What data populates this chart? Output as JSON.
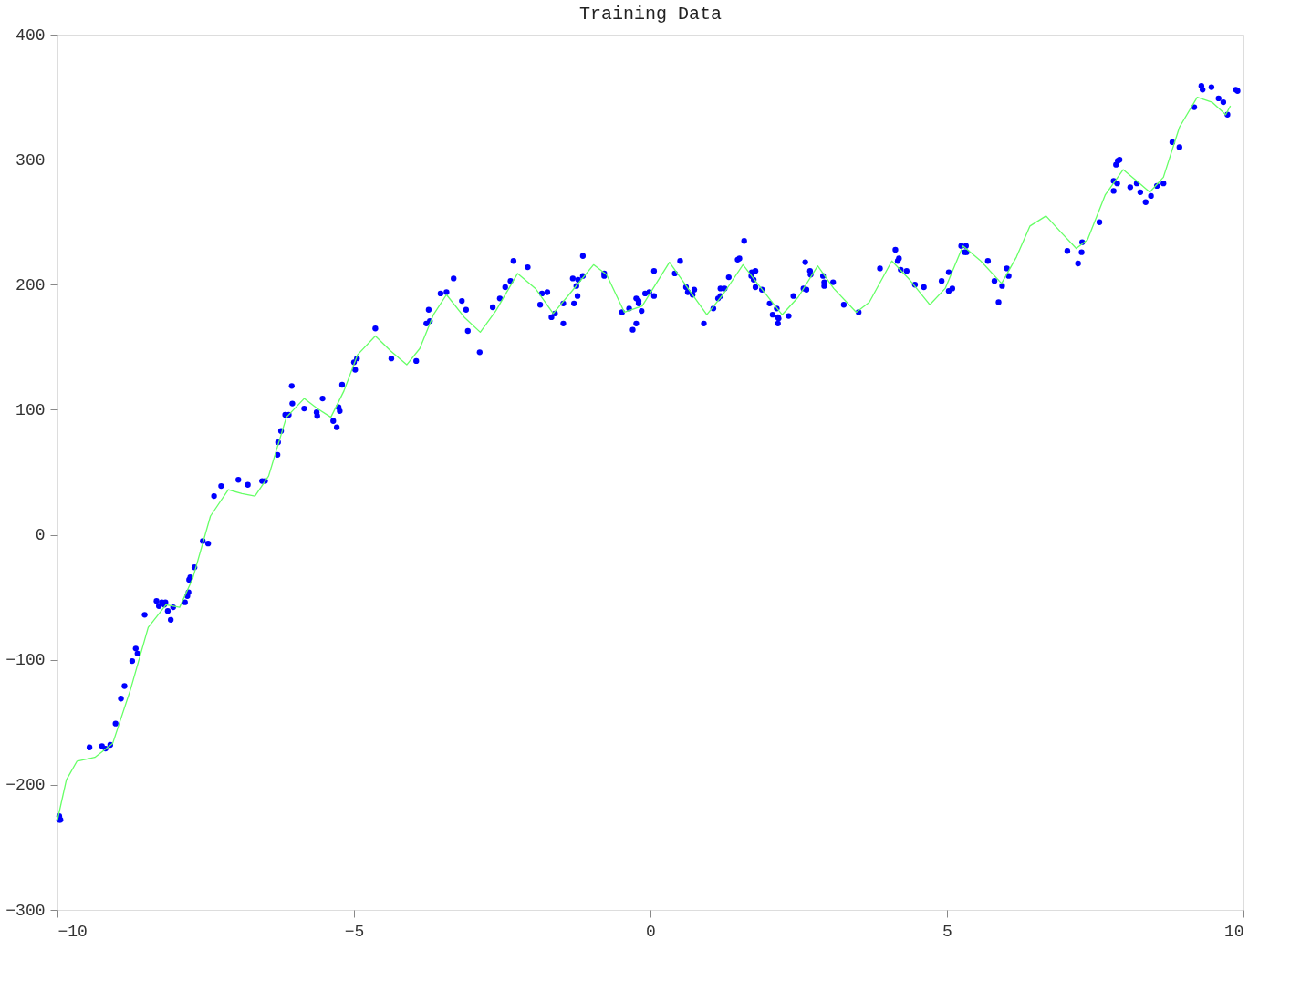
{
  "chart_data": {
    "type": "scatter",
    "title": "Training Data",
    "xlim": [
      -10,
      10
    ],
    "xticks": [
      -10,
      -5,
      0,
      5,
      10
    ],
    "ylim": [
      -300,
      400
    ],
    "yticks": [
      -300,
      -200,
      -100,
      0,
      100,
      200,
      300,
      400
    ],
    "grid": false,
    "series": [
      {
        "marker": "circle",
        "color": "#0000ff",
        "x": [
          -9.97,
          -9.97,
          -9.95,
          -9.46,
          -9.25,
          -9.19,
          -9.11,
          -9.02,
          -8.93,
          -8.87,
          -8.74,
          -8.68,
          -8.65,
          -8.53,
          -8.33,
          -8.29,
          -8.24,
          -8.2,
          -8.18,
          -8.14,
          -8.09,
          -8.05,
          -7.85,
          -7.81,
          -7.79,
          -7.78,
          -7.76,
          -7.69,
          -7.55,
          -7.46,
          -7.36,
          -7.24,
          -6.95,
          -6.79,
          -6.55,
          -6.5,
          -6.29,
          -6.28,
          -6.23,
          -6.16,
          -6.1,
          -6.05,
          -6.04,
          -5.84,
          -5.62,
          -5.63,
          -5.53,
          -5.35,
          -5.29,
          -5.26,
          -5.24,
          -5.2,
          -5.0,
          -4.95,
          -4.98,
          -4.64,
          -4.37,
          -3.95,
          -3.78,
          -3.72,
          -3.74,
          -3.54,
          -3.44,
          -3.32,
          -3.18,
          -3.11,
          -3.08,
          -2.88,
          -2.66,
          -2.54,
          -2.45,
          -2.36,
          -2.31,
          -2.07,
          -1.86,
          -1.83,
          -1.74,
          -1.67,
          -1.61,
          -1.47,
          -1.47,
          -1.29,
          -1.23,
          -1.25,
          -1.31,
          -1.22,
          -1.14,
          -1.14,
          -0.78,
          -0.78,
          -0.48,
          -0.36,
          -0.3,
          -0.24,
          -0.24,
          -0.2,
          -0.2,
          -0.15,
          -0.09,
          -0.02,
          0.06,
          0.06,
          0.41,
          0.5,
          0.6,
          0.63,
          0.71,
          0.74,
          0.9,
          1.06,
          1.14,
          1.18,
          1.18,
          1.25,
          1.32,
          1.47,
          1.5,
          1.58,
          1.7,
          1.71,
          1.77,
          1.74,
          1.77,
          1.88,
          2.01,
          2.13,
          2.06,
          2.15,
          2.16,
          2.15,
          2.33,
          2.41,
          2.61,
          2.58,
          2.63,
          2.69,
          2.7,
          2.91,
          2.93,
          2.93,
          3.08,
          3.26,
          3.51,
          3.87,
          4.13,
          4.19,
          4.17,
          4.22,
          4.32,
          4.46,
          4.61,
          4.91,
          5.03,
          5.03,
          5.09,
          5.24,
          5.32,
          5.3,
          5.33,
          5.69,
          5.8,
          5.87,
          5.93,
          6.01,
          6.04,
          7.03,
          7.21,
          7.27,
          7.28,
          7.57,
          7.81,
          7.81,
          7.87,
          7.85,
          7.88,
          7.91,
          8.09,
          8.2,
          8.26,
          8.35,
          8.44,
          8.54,
          8.65,
          8.8,
          8.92,
          9.17,
          9.29,
          9.31,
          9.46,
          9.58,
          9.66,
          9.73,
          9.87,
          9.9
        ],
        "values": [
          -225,
          -228,
          -228,
          -170,
          -169,
          -171,
          -168,
          -151,
          -131,
          -121,
          -101,
          -91,
          -95,
          -64,
          -53,
          -57,
          -54,
          -56,
          -54,
          -61,
          -68,
          -58,
          -54,
          -49,
          -46,
          -36,
          -34,
          -26,
          -5,
          -7,
          31,
          39,
          44,
          40,
          43,
          43,
          64,
          74,
          83,
          96,
          96,
          119,
          105,
          101,
          95,
          98,
          109,
          91,
          86,
          102,
          99,
          120,
          138,
          141,
          132,
          165,
          141,
          139,
          169,
          171,
          180,
          193,
          194,
          205,
          187,
          180,
          163,
          146,
          182,
          189,
          198,
          203,
          219,
          214,
          184,
          193,
          194,
          174,
          177,
          169,
          185,
          185,
          191,
          199,
          205,
          204,
          207,
          223,
          209,
          207,
          178,
          181,
          164,
          169,
          189,
          187,
          185,
          179,
          193,
          194,
          191,
          211,
          209,
          219,
          198,
          194,
          192,
          196,
          169,
          181,
          189,
          191,
          197,
          197,
          206,
          220,
          221,
          235,
          207,
          210,
          211,
          204,
          198,
          196,
          185,
          181,
          176,
          174,
          173,
          169,
          175,
          191,
          218,
          197,
          196,
          211,
          208,
          207,
          202,
          199,
          202,
          184,
          178,
          213,
          228,
          221,
          219,
          212,
          211,
          200,
          198,
          203,
          210,
          195,
          197,
          231,
          231,
          226,
          226,
          219,
          203,
          186,
          199,
          213,
          207,
          227,
          217,
          226,
          234,
          250,
          275,
          283,
          281,
          296,
          299,
          300,
          278,
          281,
          274,
          266,
          271,
          279,
          281,
          314,
          310,
          342,
          359,
          356,
          358,
          349,
          346,
          336,
          356,
          355
        ]
      },
      {
        "type": "line",
        "line_style": "solid",
        "color": "#66ff66",
        "x": [
          -10,
          -9.85,
          -9.67,
          -9.37,
          -9.07,
          -8.77,
          -8.47,
          -8.17,
          -7.94,
          -7.72,
          -7.42,
          -7.12,
          -6.89,
          -6.67,
          -6.44,
          -6.14,
          -5.84,
          -5.62,
          -5.39,
          -5.17,
          -4.94,
          -4.64,
          -4.38,
          -4.11,
          -3.89,
          -3.66,
          -3.44,
          -3.14,
          -2.87,
          -2.61,
          -2.24,
          -1.94,
          -1.64,
          -1.34,
          -0.96,
          -0.74,
          -0.44,
          -0.14,
          0.32,
          0.62,
          0.95,
          1.22,
          1.56,
          1.82,
          2.22,
          2.49,
          2.82,
          3.09,
          3.47,
          3.69,
          4.07,
          4.37,
          4.71,
          4.97,
          5.27,
          5.57,
          5.92,
          6.17,
          6.4,
          6.67,
          6.92,
          7.18,
          7.37,
          7.67,
          7.97,
          8.2,
          8.42,
          8.65,
          8.92,
          9.22,
          9.47,
          9.7,
          9.78
        ],
        "values": [
          -228,
          -196,
          -181,
          -178,
          -167,
          -124,
          -74,
          -56,
          -58,
          -35,
          15,
          36,
          33,
          31,
          47,
          94,
          109,
          101,
          94,
          115,
          144,
          159,
          147,
          136,
          149,
          176,
          192,
          174,
          162,
          179,
          209,
          197,
          177,
          194,
          216,
          208,
          178,
          183,
          218,
          198,
          176,
          192,
          216,
          200,
          176,
          190,
          215,
          197,
          178,
          186,
          219,
          204,
          184,
          197,
          231,
          219,
          201,
          222,
          247,
          255,
          242,
          229,
          236,
          272,
          292,
          283,
          274,
          286,
          326,
          350,
          346,
          336,
          343
        ]
      }
    ]
  }
}
